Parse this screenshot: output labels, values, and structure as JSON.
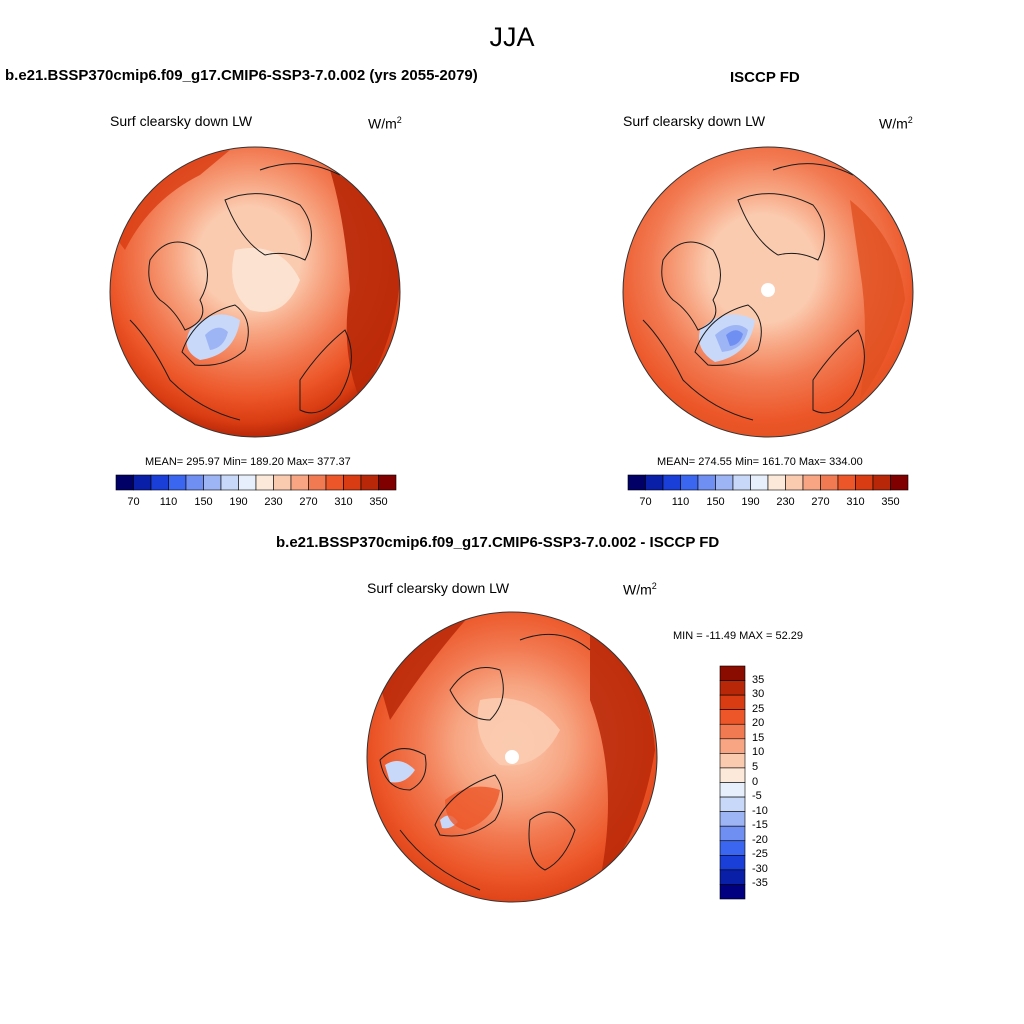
{
  "season": "JJA",
  "variable": "Surf clearsky down LW",
  "units_base": "W/m",
  "units_exp": "2",
  "panels": {
    "model": {
      "title": "b.e21.BSSP370cmip6.f09_g17.CMIP6-SSP3-7.0.002 (yrs 2055-2079)",
      "stats": "MEAN= 295.97  Min= 189.20  Max= 377.37",
      "mean": 295.97,
      "min": 189.2,
      "max": 377.37
    },
    "obs": {
      "title": "ISCCP FD",
      "stats": "MEAN= 274.55  Min= 161.70  Max= 334.00",
      "mean": 274.55,
      "min": 161.7,
      "max": 334.0
    },
    "diff": {
      "title": "b.e21.BSSP370cmip6.f09_g17.CMIP6-SSP3-7.0.002 - ISCCP FD",
      "stats": "MIN = -11.49 MAX =  52.29",
      "min": -11.49,
      "max": 52.29
    }
  },
  "colorbar_abs": {
    "tick_labels": [
      "70",
      "110",
      "150",
      "190",
      "230",
      "270",
      "310",
      "350"
    ],
    "levels": [
      70,
      90,
      110,
      130,
      150,
      170,
      190,
      210,
      230,
      250,
      270,
      290,
      310,
      330,
      350
    ],
    "colors": [
      "#000066",
      "#0a1fa8",
      "#1a3fd8",
      "#3a66f0",
      "#6f8ff2",
      "#9db5f5",
      "#c8d8f8",
      "#e6effb",
      "#fde9d9",
      "#fbcbb0",
      "#f7a582",
      "#f27a52",
      "#ec5628",
      "#d93c12",
      "#b82808",
      "#800000"
    ]
  },
  "colorbar_diff": {
    "tick_labels": [
      "35",
      "30",
      "25",
      "20",
      "15",
      "10",
      "5",
      "0",
      "-5",
      "-10",
      "-15",
      "-20",
      "-25",
      "-30",
      "-35"
    ],
    "colors": [
      "#8a0c00",
      "#b82808",
      "#d93c12",
      "#ec5628",
      "#f27a52",
      "#f7a582",
      "#fbcbb0",
      "#fde9d9",
      "#e6effb",
      "#c8d8f8",
      "#9db5f5",
      "#6f8ff2",
      "#3a66f0",
      "#1a3fd8",
      "#0a1fa8",
      "#000080"
    ]
  },
  "map_colors": {
    "outer": "#b8300c",
    "mid": "#ec5628",
    "inner": "#f27a52",
    "light": "#f7a582",
    "pale": "#fbcbb0",
    "blue1": "#c8d8f8",
    "blue2": "#9db5f5",
    "blue3": "#6f8ff2",
    "coast": "#1a1a1a"
  }
}
